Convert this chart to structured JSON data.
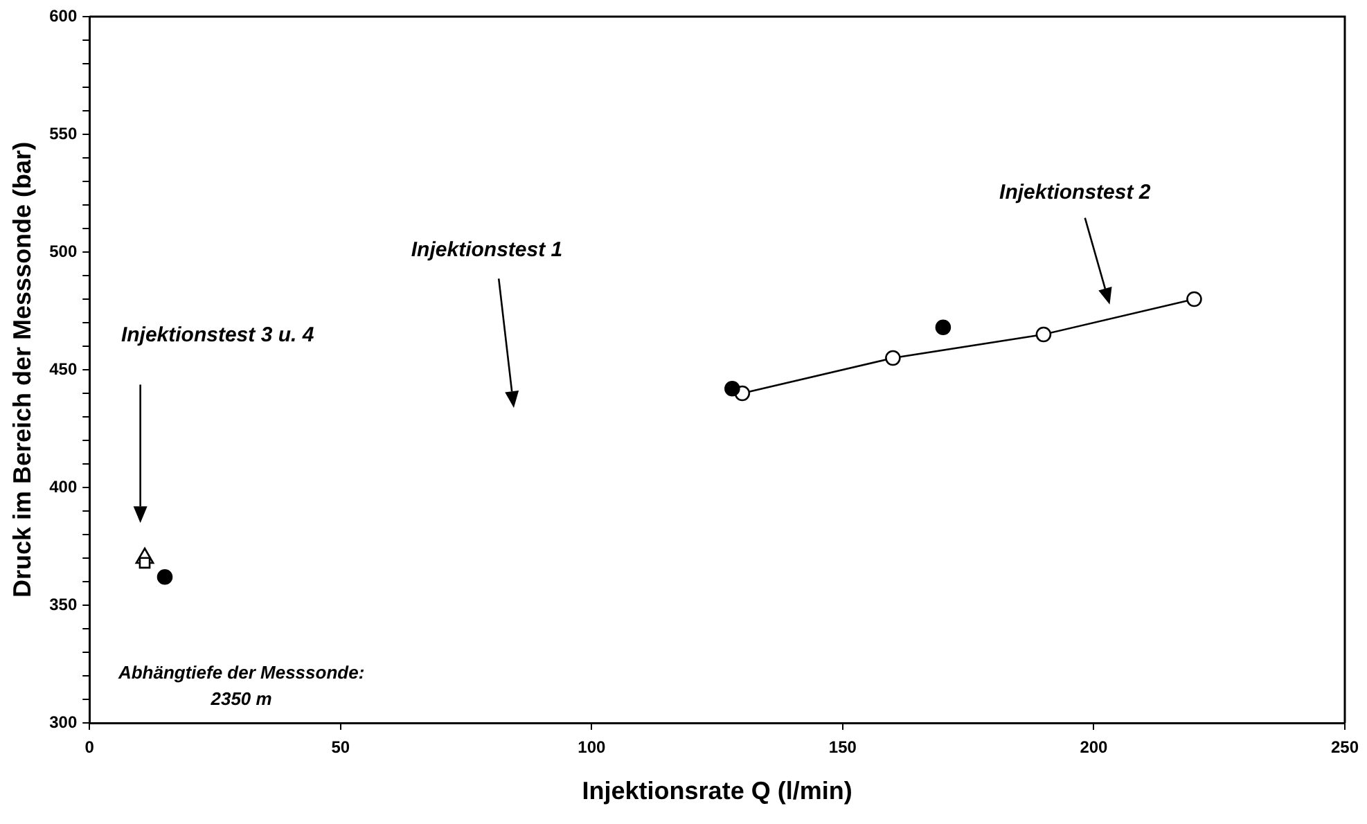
{
  "chart_data": {
    "type": "scatter",
    "xlabel": "Injektionsrate Q (l/min)",
    "ylabel": "Druck im Bereich der Messsonde (bar)",
    "xlim": [
      0,
      250
    ],
    "xticks": [
      0,
      50,
      100,
      150,
      200,
      250
    ],
    "ylim": [
      300,
      600
    ],
    "yticks": [
      300,
      {
        "value": 310,
        "label": null
      },
      {
        "value": 320,
        "label": null
      },
      {
        "value": 330,
        "label": null
      },
      {
        "value": 340,
        "label": null
      },
      350,
      {
        "value": 360,
        "label": null
      },
      {
        "value": 370,
        "label": null
      },
      {
        "value": 380,
        "label": null
      },
      {
        "value": 390,
        "label": null
      },
      400,
      {
        "value": 410,
        "label": null
      },
      {
        "value": 420,
        "label": null
      },
      {
        "value": 430,
        "label": null
      },
      {
        "value": 440,
        "label": null
      },
      450,
      {
        "value": 460,
        "label": null
      },
      {
        "value": 470,
        "label": null
      },
      {
        "value": 480,
        "label": null
      },
      {
        "value": 490,
        "label": null
      },
      500,
      {
        "value": 510,
        "label": null
      },
      {
        "value": 520,
        "label": null
      },
      {
        "value": 530,
        "label": null
      },
      {
        "value": 540,
        "label": null
      },
      550,
      {
        "value": 560,
        "label": null
      },
      {
        "value": 570,
        "label": null
      },
      {
        "value": 580,
        "label": null
      },
      {
        "value": 590,
        "label": null
      },
      600
    ],
    "grid": false,
    "legend": false,
    "series": [
      {
        "type": "scatter",
        "marker": "circle",
        "color": "#000000",
        "x": [
          128,
          170,
          15
        ],
        "values": [
          442,
          468,
          362
        ]
      },
      {
        "type": "line",
        "marker": "circle",
        "color": "#ffffff",
        "x": [
          130,
          160,
          190,
          220
        ],
        "values": [
          440,
          455,
          465,
          480
        ]
      },
      {
        "type": "scatter",
        "marker": "square",
        "color": "#ffffff",
        "x": [
          11
        ],
        "values": [
          368
        ]
      },
      {
        "type": "scatter",
        "marker": "triangle",
        "color": "#ffffff",
        "x": [
          11
        ],
        "values": [
          370
        ]
      }
    ],
    "annotations": [
      "Injektionstest 2",
      "Injektionstest 1",
      "Injektionstest 3 u. 4",
      "Abhängtiefe der Messsonde:\n2350 m"
    ]
  }
}
